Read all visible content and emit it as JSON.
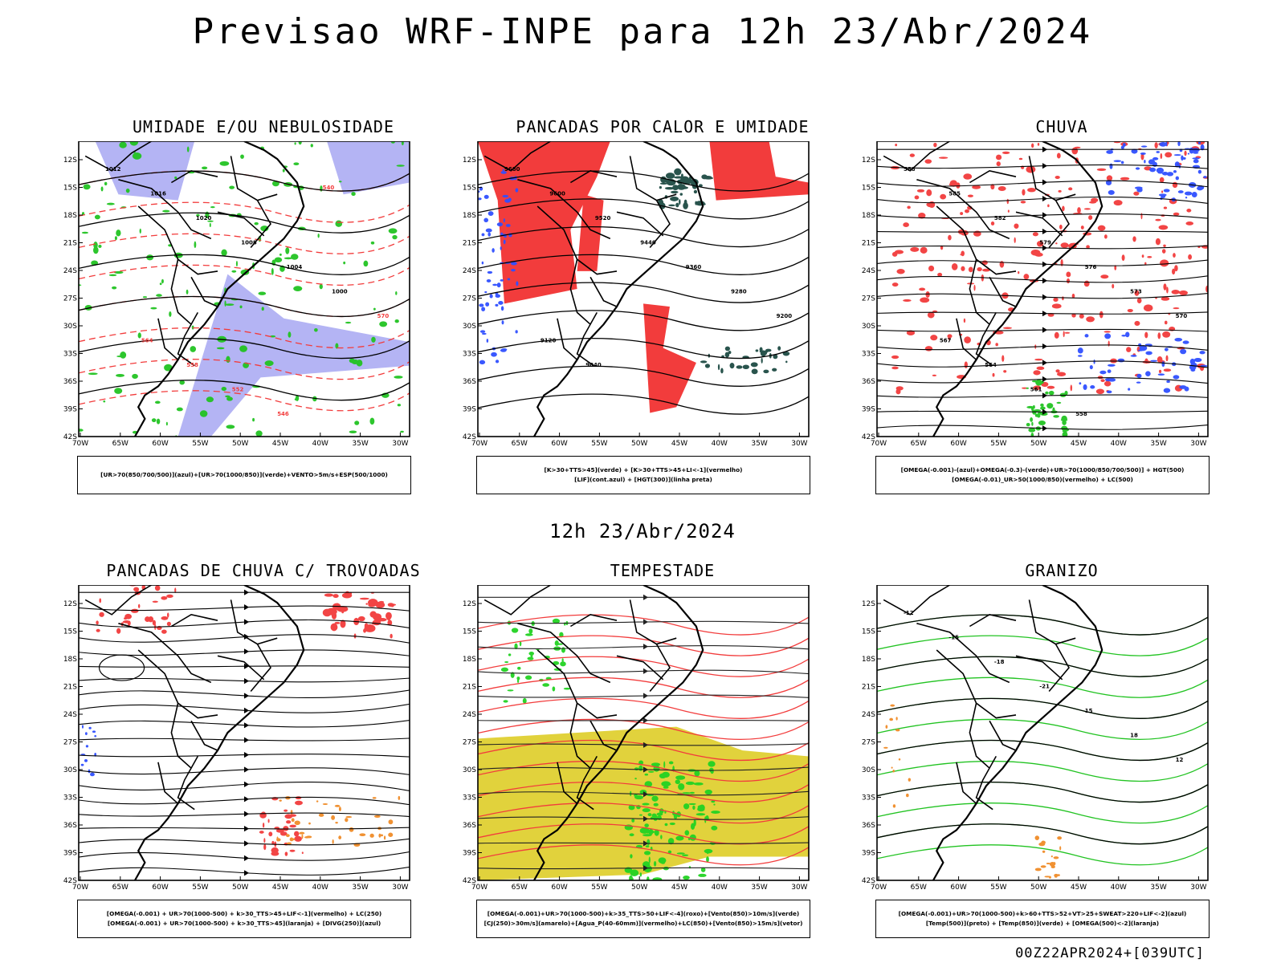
{
  "header": {
    "title": "Previsao WRF-INPE  para 12h 23/Abr/2024"
  },
  "mid_title": "12h 23/Abr/2024",
  "footer": "00Z22APR2024+[039UTC]",
  "axes": {
    "lat_labels": [
      "12S",
      "15S",
      "18S",
      "21S",
      "24S",
      "27S",
      "30S",
      "33S",
      "36S",
      "39S",
      "42S"
    ],
    "lon_labels": [
      "70W",
      "65W",
      "60W",
      "55W",
      "50W",
      "45W",
      "40W",
      "35W",
      "30W"
    ]
  },
  "panels": [
    {
      "id": "umidade",
      "title": "UMIDADE E/OU NEBULOSIDADE",
      "legend": [
        "[UR>70(850/700/500)](azul)+[UR>70(1000/850)](verde)+VENTO>5m/s+ESP(500/1000)"
      ],
      "contour_labels": [
        "1012",
        "1016",
        "1020",
        "1008",
        "1004",
        "1000",
        "570",
        "564",
        "558",
        "552",
        "546",
        "540"
      ]
    },
    {
      "id": "pancadas-calor",
      "title": "PANCADAS POR CALOR E UMIDADE",
      "legend": [
        "[K>30+TTS>45](verde) + [K>30+TTS>45+LI<-1](vermelho)",
        "[LIF](cont.azul) + [HGT(300)](linha preta)"
      ],
      "contour_labels": [
        "9680",
        "9600",
        "9520",
        "9440",
        "9360",
        "9280",
        "9200",
        "9120",
        "9040"
      ]
    },
    {
      "id": "chuva",
      "title": "CHUVA",
      "legend": [
        "[OMEGA(-0.001)-(azul)+OMEGA(-0.3)-(verde)+UR>70(1000/850/700/500)] + HGT(500)",
        "[OMEGA(-0.01)_UR>50(1000/850)(vermelho) + LC(500)"
      ],
      "contour_labels": [
        "588",
        "585",
        "582",
        "579",
        "576",
        "573",
        "570",
        "567",
        "564",
        "561",
        "558"
      ]
    },
    {
      "id": "trovoadas",
      "title": "PANCADAS DE CHUVA C/ TROVOADAS",
      "legend": [
        "[OMEGA(-0.001) + UR>70(1000-500) + k>30_TTS>45+LIF<-1](vermelho) + LC(250)",
        "[OMEGA(-0.001) + UR>70(1000-500) + k>30_TTS>45](laranja) + [DIVG(250)](azul)"
      ],
      "contour_labels": []
    },
    {
      "id": "tempestade",
      "title": "TEMPESTADE",
      "legend": [
        "[OMEGA(-0.001)+UR>70(1000-500)+k>35_TTS>50+LIF<-4](roxo)+[Vento(850)>10m/s](verde)",
        "[CJ(250)>30m/s](amarelo)+[Agua_P(40-60mm)](vermelho)+LC(850)+[Vento(850)>15m/s](vetor)"
      ],
      "contour_labels": []
    },
    {
      "id": "granizo",
      "title": "GRANIZO",
      "legend": [
        "[OMEGA(-0.001)+UR>70(1000-500)+k>60+TTS>52+VT>25+SWEAT>220+LIF<-2](azul)",
        "[Temp(500)](preto) + [Temp(850)](verde) + [OMEGA(500)<-2](laranja)"
      ],
      "contour_labels": [
        "-12",
        "-15",
        "-18",
        "-21",
        "15",
        "18",
        "12"
      ]
    }
  ],
  "colors": {
    "red": "#f23c3c",
    "green": "#22c322",
    "blue": "#3050ff",
    "lavender": "#b4b4f4",
    "darkteal": "#1e4b44",
    "yellow": "#e1d23c",
    "orange": "#f08c28",
    "brightgreen": "#22d222"
  }
}
